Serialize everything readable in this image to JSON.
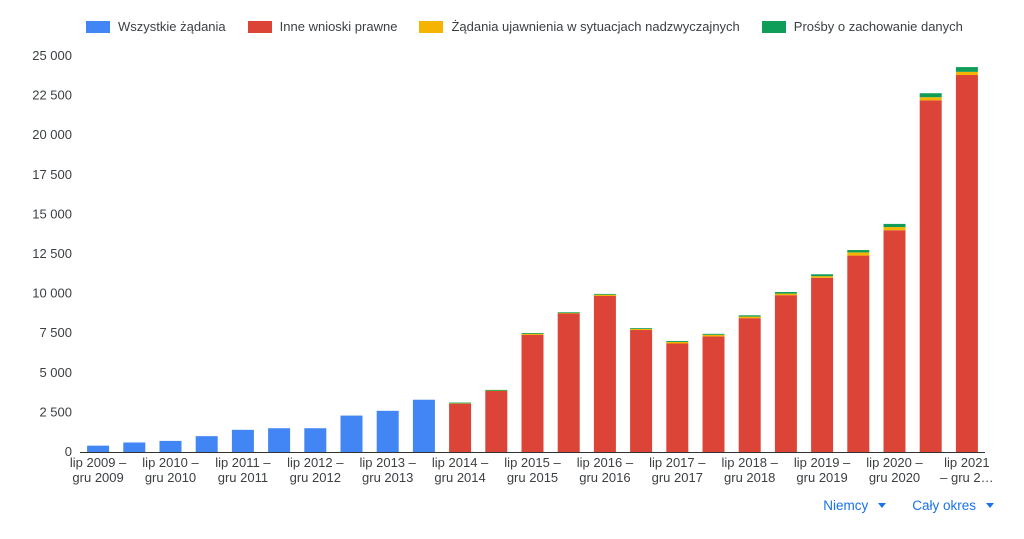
{
  "chart_data": {
    "type": "bar",
    "stacked": true,
    "categories": [
      [
        "lip 2009 –",
        "gru 2009"
      ],
      [
        "",
        ""
      ],
      [
        "lip 2010 –",
        "gru 2010"
      ],
      [
        "",
        ""
      ],
      [
        "lip 2011 –",
        "gru 2011"
      ],
      [
        "",
        ""
      ],
      [
        "lip 2012 –",
        "gru 2012"
      ],
      [
        "",
        ""
      ],
      [
        "lip 2013 –",
        "gru 2013"
      ],
      [
        "",
        ""
      ],
      [
        "lip 2014 –",
        "gru 2014"
      ],
      [
        "",
        ""
      ],
      [
        "lip 2015 –",
        "gru 2015"
      ],
      [
        "",
        ""
      ],
      [
        "lip 2016 –",
        "gru 2016"
      ],
      [
        "",
        ""
      ],
      [
        "lip 2017 –",
        "gru 2017"
      ],
      [
        "",
        ""
      ],
      [
        "lip 2018 –",
        "gru 2018"
      ],
      [
        "",
        ""
      ],
      [
        "lip 2019 –",
        "gru 2019"
      ],
      [
        "",
        ""
      ],
      [
        "lip 2020 –",
        "gru 2020"
      ],
      [
        "",
        ""
      ],
      [
        "lip 2021",
        "– gru 2…"
      ]
    ],
    "series": [
      {
        "name": "Wszystkie żądania",
        "color": "#4285f4",
        "values": [
          400,
          600,
          700,
          1000,
          1400,
          1500,
          1500,
          2300,
          2600,
          3300,
          0,
          0,
          0,
          0,
          0,
          0,
          0,
          0,
          0,
          0,
          0,
          0,
          0,
          0,
          0
        ]
      },
      {
        "name": "Inne wnioski prawne",
        "color": "#db4437",
        "values": [
          0,
          0,
          0,
          0,
          0,
          0,
          0,
          0,
          0,
          0,
          3050,
          3850,
          7400,
          8750,
          9850,
          7700,
          6850,
          7300,
          8450,
          9900,
          11000,
          12400,
          14000,
          22200,
          23800
        ]
      },
      {
        "name": "Żądania ujawnienia w sytuacjach nadzwyczajnych",
        "color": "#f4b400",
        "values": [
          0,
          0,
          0,
          0,
          0,
          0,
          0,
          0,
          0,
          0,
          50,
          50,
          80,
          40,
          80,
          80,
          100,
          100,
          100,
          100,
          100,
          200,
          200,
          200,
          200
        ]
      },
      {
        "name": "Prośby o zachowanie danych",
        "color": "#0f9d58",
        "values": [
          0,
          0,
          0,
          0,
          0,
          0,
          0,
          0,
          0,
          0,
          20,
          20,
          30,
          30,
          50,
          40,
          60,
          60,
          80,
          100,
          120,
          150,
          200,
          250,
          300
        ]
      }
    ],
    "yticks": [
      "0",
      "2 500",
      "5 000",
      "7 500",
      "10 000",
      "12 500",
      "15 000",
      "17 500",
      "20 000",
      "22 500",
      "25 000"
    ],
    "ylim": [
      0,
      25000
    ],
    "grid": false,
    "legend_position": "top"
  },
  "controls": {
    "country": "Niemcy",
    "period": "Cały okres"
  }
}
